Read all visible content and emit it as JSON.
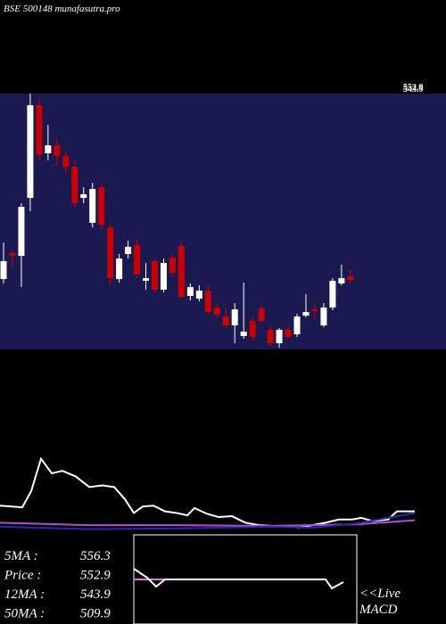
{
  "chart_data": [
    {
      "type": "candlestick",
      "title": "BSE 500148 munafasutra.pro",
      "ylim": [
        487,
        720
      ],
      "up_color": "#ffffff",
      "down_color": "#cc0000",
      "panel_color": "#1a1a50",
      "open": [
        551.1,
        574.7,
        572.2,
        625.0,
        709.4,
        665.6,
        672.9,
        663.2,
        653.4,
        625.0,
        602.3,
        634.7,
        598.2,
        551.1,
        573.9,
        582.0,
        549.5,
        567.4,
        541.4,
        570.6,
        581.2,
        535.7,
        533.3,
        540.6,
        525.2,
        517.0,
        508.9,
        499.2,
        513.0,
        524.3,
        504.9,
        492.7,
        504.9,
        500.8,
        517.8,
        523.5,
        508.9,
        525.2,
        547.1,
        553.6
      ],
      "high": [
        584.4,
        577.9,
        620.1,
        720.0,
        715.9,
        691.6,
        679.4,
        667.2,
        659.1,
        634.7,
        638.8,
        638.8,
        602.3,
        573.9,
        586.0,
        587.7,
        565.7,
        569.8,
        569.8,
        573.9,
        584.4,
        547.1,
        545.4,
        545.4,
        529.2,
        525.2,
        529.2,
        547.9,
        517.0,
        526.8,
        508.9,
        506.5,
        508.9,
        519.5,
        537.3,
        529.2,
        529.2,
        551.9,
        564.1,
        560.1
      ],
      "low": [
        547.1,
        561.7,
        543.8,
        612.8,
        659.1,
        659.1,
        655.0,
        646.9,
        616.9,
        620.1,
        598.2,
        595.8,
        545.4,
        547.9,
        569.8,
        551.9,
        541.4,
        539.0,
        539.0,
        553.6,
        533.3,
        531.6,
        530.8,
        519.5,
        516.2,
        506.5,
        492.7,
        496.7,
        495.1,
        511.4,
        490.2,
        488.6,
        496.7,
        498.4,
        516.2,
        514.6,
        507.3,
        522.7,
        545.4,
        547.1
      ],
      "close": [
        567.4,
        572.2,
        616.9,
        709.4,
        664.0,
        672.9,
        663.2,
        653.4,
        620.1,
        628.3,
        633.1,
        600.7,
        551.9,
        569.8,
        580.4,
        555.2,
        551.9,
        541.4,
        565.7,
        556.8,
        534.9,
        543.8,
        540.6,
        521.1,
        518.7,
        508.9,
        523.5,
        503.2,
        498.4,
        513.0,
        492.7,
        504.9,
        498.4,
        517.0,
        521.1,
        521.9,
        525.2,
        549.5,
        551.9,
        550.3
      ],
      "price_labels": [
        552.9,
        543.9
      ]
    },
    {
      "type": "line",
      "xlim": [
        0,
        500
      ],
      "ylim": [
        -10,
        100
      ],
      "series": [
        {
          "color": "#ffffff",
          "x": [
            0,
            25,
            35,
            46,
            58,
            70,
            85,
            100,
            115,
            128,
            140,
            150,
            160,
            172,
            185,
            198,
            210,
            218,
            232,
            245,
            260,
            275,
            290,
            305,
            320,
            335,
            350,
            365,
            380,
            395,
            405,
            418,
            435,
            445,
            465
          ],
          "values": [
            30,
            27.8,
            50,
            94.4,
            74.4,
            77.8,
            70,
            55.6,
            57.8,
            55.6,
            38.9,
            20,
            28.9,
            30,
            22.2,
            20,
            16.7,
            26.7,
            18.9,
            14.4,
            15.6,
            6.7,
            3.3,
            2.2,
            2.2,
            0,
            3.3,
            6.7,
            11.1,
            11.1,
            13.3,
            8.9,
            11.1,
            22.2,
            22.2
          ]
        },
        {
          "color": "#b050d0",
          "x": [
            0,
            100,
            200,
            300,
            400,
            465
          ],
          "values": [
            6.7,
            3.3,
            3.3,
            2.2,
            4.4,
            10
          ]
        },
        {
          "color": "#2828b0",
          "x": [
            0,
            100,
            200,
            300,
            350,
            400,
            465
          ],
          "values": [
            1.1,
            -2.2,
            -1.1,
            1.1,
            0,
            5.6,
            20
          ]
        }
      ]
    },
    {
      "type": "macd",
      "xlim": [
        0,
        500
      ],
      "ylim": [
        0,
        100
      ],
      "series": [
        {
          "color": "#e070e0",
          "x": [
            150,
            355
          ],
          "values": [
            50,
            50
          ]
        },
        {
          "color": "#ffffff",
          "x": [
            150,
            165,
            175,
            185,
            355,
            365,
            372,
            385
          ],
          "values": [
            62,
            52,
            42,
            50,
            50,
            50,
            40,
            47
          ]
        }
      ],
      "labels": [
        "<<Live",
        "MACD"
      ]
    }
  ],
  "stats": [
    {
      "label": "5MA :",
      "value": 556.3
    },
    {
      "label": "Price :",
      "value": 552.9
    },
    {
      "label": "12MA :",
      "value": 543.9
    },
    {
      "label": "50MA :",
      "value": 509.9
    }
  ]
}
